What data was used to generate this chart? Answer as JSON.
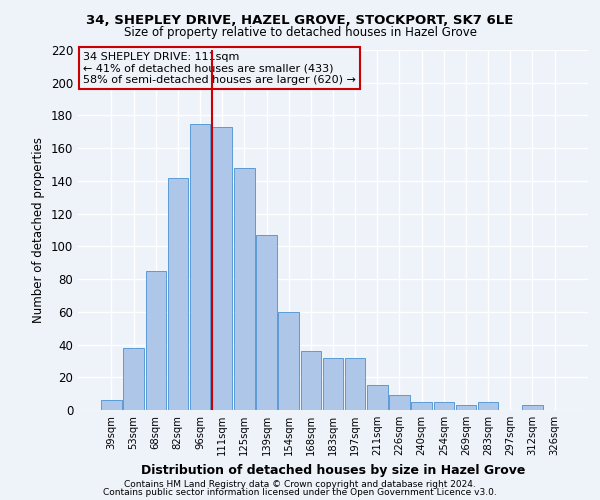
{
  "title1": "34, SHEPLEY DRIVE, HAZEL GROVE, STOCKPORT, SK7 6LE",
  "title2": "Size of property relative to detached houses in Hazel Grove",
  "xlabel": "Distribution of detached houses by size in Hazel Grove",
  "ylabel": "Number of detached properties",
  "footnote1": "Contains HM Land Registry data © Crown copyright and database right 2024.",
  "footnote2": "Contains public sector information licensed under the Open Government Licence v3.0.",
  "categories": [
    "39sqm",
    "53sqm",
    "68sqm",
    "82sqm",
    "96sqm",
    "111sqm",
    "125sqm",
    "139sqm",
    "154sqm",
    "168sqm",
    "183sqm",
    "197sqm",
    "211sqm",
    "226sqm",
    "240sqm",
    "254sqm",
    "269sqm",
    "283sqm",
    "297sqm",
    "312sqm",
    "326sqm"
  ],
  "values": [
    6,
    38,
    85,
    142,
    175,
    173,
    148,
    107,
    60,
    36,
    32,
    32,
    15,
    9,
    5,
    5,
    3,
    5,
    0,
    3,
    0
  ],
  "bar_color": "#aec6e8",
  "bar_edge_color": "#5b9bd5",
  "property_label": "34 SHEPLEY DRIVE: 111sqm",
  "annotation_line1": "← 41% of detached houses are smaller (433)",
  "annotation_line2": "58% of semi-detached houses are larger (620) →",
  "vline_color": "#cc0000",
  "vline_x_index": 5,
  "ylim": [
    0,
    220
  ],
  "yticks": [
    0,
    20,
    40,
    60,
    80,
    100,
    120,
    140,
    160,
    180,
    200,
    220
  ],
  "bg_color": "#eef2f9",
  "grid_color": "#ffffff",
  "annotation_box_color": "#cc0000",
  "bar_width": 0.92
}
